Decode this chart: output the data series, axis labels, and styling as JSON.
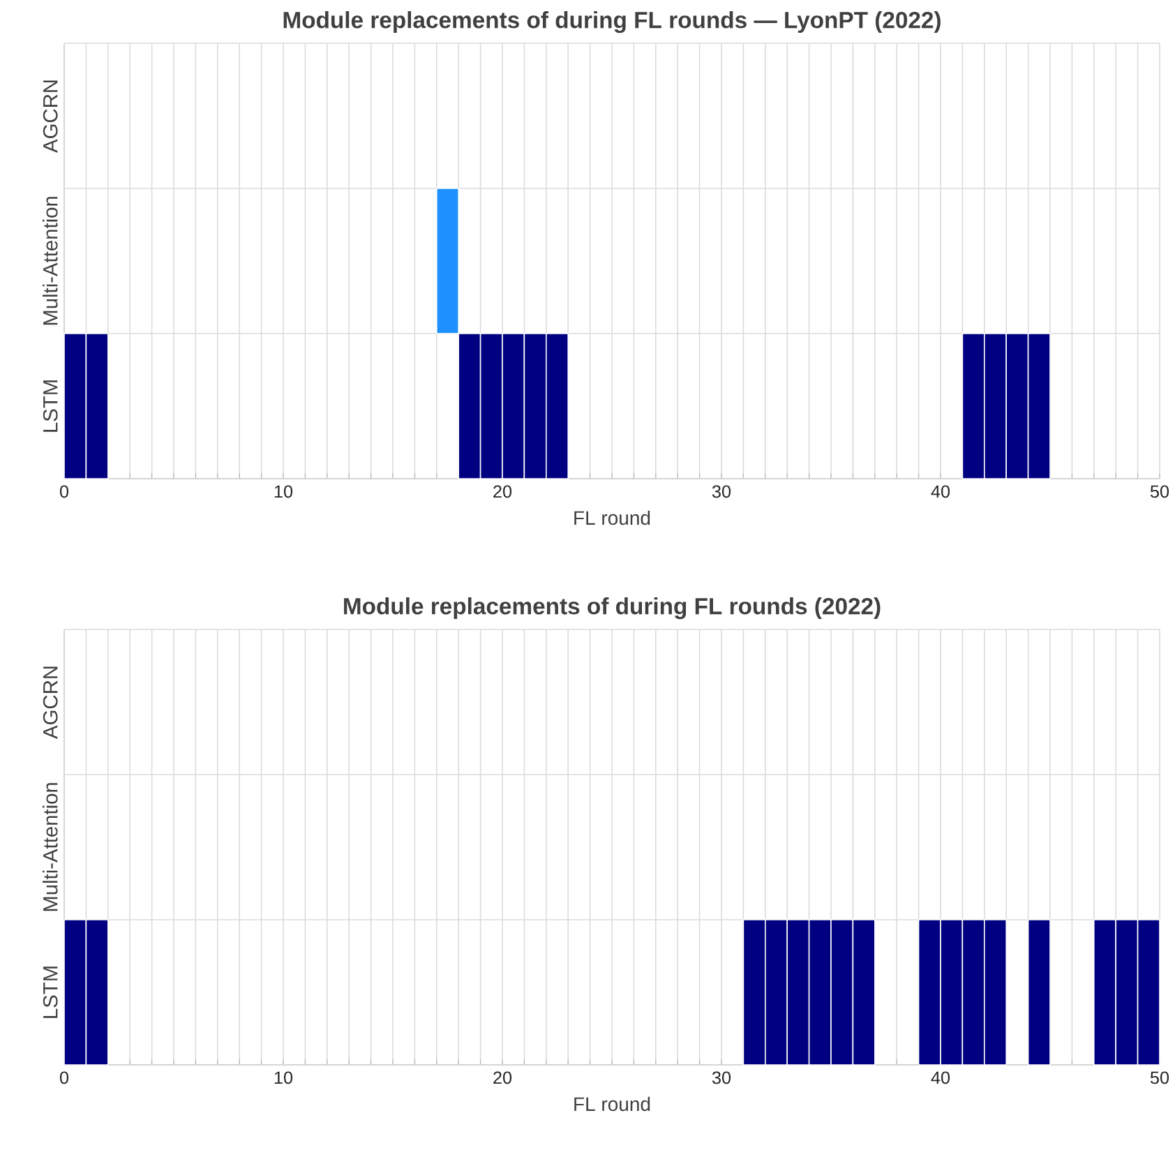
{
  "chart_data": [
    {
      "type": "bar",
      "orientation": "horizontal",
      "title": "Module replacements of during FL rounds — LyonPT (2022)",
      "xlabel": "FL round",
      "xlim": [
        0,
        50
      ],
      "xticks": [
        0,
        {
          "value": 1,
          "label": null
        },
        {
          "value": 2,
          "label": null
        },
        {
          "value": 3,
          "label": null
        },
        {
          "value": 4,
          "label": null
        },
        {
          "value": 5,
          "label": null
        },
        {
          "value": 6,
          "label": null
        },
        {
          "value": 7,
          "label": null
        },
        {
          "value": 8,
          "label": null
        },
        {
          "value": 9,
          "label": null
        },
        10,
        {
          "value": 11,
          "label": null
        },
        {
          "value": 12,
          "label": null
        },
        {
          "value": 13,
          "label": null
        },
        {
          "value": 14,
          "label": null
        },
        {
          "value": 15,
          "label": null
        },
        {
          "value": 16,
          "label": null
        },
        {
          "value": 17,
          "label": null
        },
        {
          "value": 18,
          "label": null
        },
        {
          "value": 19,
          "label": null
        },
        20,
        {
          "value": 21,
          "label": null
        },
        {
          "value": 22,
          "label": null
        },
        {
          "value": 23,
          "label": null
        },
        {
          "value": 24,
          "label": null
        },
        {
          "value": 25,
          "label": null
        },
        {
          "value": 26,
          "label": null
        },
        {
          "value": 27,
          "label": null
        },
        {
          "value": 28,
          "label": null
        },
        {
          "value": 29,
          "label": null
        },
        30,
        {
          "value": 31,
          "label": null
        },
        {
          "value": 32,
          "label": null
        },
        {
          "value": 33,
          "label": null
        },
        {
          "value": 34,
          "label": null
        },
        {
          "value": 35,
          "label": null
        },
        {
          "value": 36,
          "label": null
        },
        {
          "value": 37,
          "label": null
        },
        {
          "value": 38,
          "label": null
        },
        {
          "value": 39,
          "label": null
        },
        40,
        {
          "value": 41,
          "label": null
        },
        {
          "value": 42,
          "label": null
        },
        {
          "value": 43,
          "label": null
        },
        {
          "value": 44,
          "label": null
        },
        {
          "value": 45,
          "label": null
        },
        {
          "value": 46,
          "label": null
        },
        {
          "value": 47,
          "label": null
        },
        {
          "value": 48,
          "label": null
        },
        {
          "value": 49,
          "label": null
        },
        50
      ],
      "categories": [
        "AGCRN",
        "Multi-Attention",
        "LSTM"
      ],
      "grid": true,
      "series": [
        {
          "color": "#000080",
          "values": [
            null,
            null,
            1
          ],
          "base": [
            null,
            null,
            0
          ]
        },
        {
          "color": "#000080",
          "values": [
            null,
            null,
            1
          ],
          "base": [
            null,
            null,
            1
          ]
        },
        {
          "color": "#1e90ff",
          "values": [
            null,
            1,
            null
          ],
          "base": [
            null,
            17,
            null
          ]
        },
        {
          "color": "#000080",
          "values": [
            null,
            null,
            1
          ],
          "base": [
            null,
            null,
            18
          ]
        },
        {
          "color": "#000080",
          "values": [
            null,
            null,
            1
          ],
          "base": [
            null,
            null,
            19
          ]
        },
        {
          "color": "#000080",
          "values": [
            null,
            null,
            1
          ],
          "base": [
            null,
            null,
            20
          ]
        },
        {
          "color": "#000080",
          "values": [
            null,
            null,
            1
          ],
          "base": [
            null,
            null,
            21
          ]
        },
        {
          "color": "#000080",
          "values": [
            null,
            null,
            1
          ],
          "base": [
            null,
            null,
            22
          ]
        },
        {
          "color": "#000080",
          "values": [
            null,
            null,
            1
          ],
          "base": [
            null,
            null,
            41
          ]
        },
        {
          "color": "#000080",
          "values": [
            null,
            null,
            1
          ],
          "base": [
            null,
            null,
            42
          ]
        },
        {
          "color": "#000080",
          "values": [
            null,
            null,
            1
          ],
          "base": [
            null,
            null,
            43
          ]
        },
        {
          "color": "#000080",
          "values": [
            null,
            null,
            1
          ],
          "base": [
            null,
            null,
            44
          ]
        }
      ]
    },
    {
      "type": "bar",
      "orientation": "horizontal",
      "title": "Module replacements of during FL rounds (2022)",
      "xlabel": "FL round",
      "xlim": [
        0,
        50
      ],
      "xticks": [
        0,
        {
          "value": 1,
          "label": null
        },
        {
          "value": 2,
          "label": null
        },
        {
          "value": 3,
          "label": null
        },
        {
          "value": 4,
          "label": null
        },
        {
          "value": 5,
          "label": null
        },
        {
          "value": 6,
          "label": null
        },
        {
          "value": 7,
          "label": null
        },
        {
          "value": 8,
          "label": null
        },
        {
          "value": 9,
          "label": null
        },
        10,
        {
          "value": 11,
          "label": null
        },
        {
          "value": 12,
          "label": null
        },
        {
          "value": 13,
          "label": null
        },
        {
          "value": 14,
          "label": null
        },
        {
          "value": 15,
          "label": null
        },
        {
          "value": 16,
          "label": null
        },
        {
          "value": 17,
          "label": null
        },
        {
          "value": 18,
          "label": null
        },
        {
          "value": 19,
          "label": null
        },
        20,
        {
          "value": 21,
          "label": null
        },
        {
          "value": 22,
          "label": null
        },
        {
          "value": 23,
          "label": null
        },
        {
          "value": 24,
          "label": null
        },
        {
          "value": 25,
          "label": null
        },
        {
          "value": 26,
          "label": null
        },
        {
          "value": 27,
          "label": null
        },
        {
          "value": 28,
          "label": null
        },
        {
          "value": 29,
          "label": null
        },
        30,
        {
          "value": 31,
          "label": null
        },
        {
          "value": 32,
          "label": null
        },
        {
          "value": 33,
          "label": null
        },
        {
          "value": 34,
          "label": null
        },
        {
          "value": 35,
          "label": null
        },
        {
          "value": 36,
          "label": null
        },
        {
          "value": 37,
          "label": null
        },
        {
          "value": 38,
          "label": null
        },
        {
          "value": 39,
          "label": null
        },
        40,
        {
          "value": 41,
          "label": null
        },
        {
          "value": 42,
          "label": null
        },
        {
          "value": 43,
          "label": null
        },
        {
          "value": 44,
          "label": null
        },
        {
          "value": 45,
          "label": null
        },
        {
          "value": 46,
          "label": null
        },
        {
          "value": 47,
          "label": null
        },
        {
          "value": 48,
          "label": null
        },
        {
          "value": 49,
          "label": null
        },
        50
      ],
      "categories": [
        "AGCRN",
        "Multi-Attention",
        "LSTM"
      ],
      "grid": true,
      "series": [
        {
          "color": "#000080",
          "values": [
            null,
            null,
            1
          ],
          "base": [
            null,
            null,
            0
          ]
        },
        {
          "color": "#000080",
          "values": [
            null,
            null,
            1
          ],
          "base": [
            null,
            null,
            1
          ]
        },
        {
          "color": "#000080",
          "values": [
            null,
            null,
            1
          ],
          "base": [
            null,
            null,
            31
          ]
        },
        {
          "color": "#000080",
          "values": [
            null,
            null,
            1
          ],
          "base": [
            null,
            null,
            32
          ]
        },
        {
          "color": "#000080",
          "values": [
            null,
            null,
            1
          ],
          "base": [
            null,
            null,
            33
          ]
        },
        {
          "color": "#000080",
          "values": [
            null,
            null,
            1
          ],
          "base": [
            null,
            null,
            34
          ]
        },
        {
          "color": "#000080",
          "values": [
            null,
            null,
            1
          ],
          "base": [
            null,
            null,
            35
          ]
        },
        {
          "color": "#000080",
          "values": [
            null,
            null,
            1
          ],
          "base": [
            null,
            null,
            36
          ]
        },
        {
          "color": "#000080",
          "values": [
            null,
            null,
            1
          ],
          "base": [
            null,
            null,
            39
          ]
        },
        {
          "color": "#000080",
          "values": [
            null,
            null,
            1
          ],
          "base": [
            null,
            null,
            40
          ]
        },
        {
          "color": "#000080",
          "values": [
            null,
            null,
            1
          ],
          "base": [
            null,
            null,
            41
          ]
        },
        {
          "color": "#000080",
          "values": [
            null,
            null,
            1
          ],
          "base": [
            null,
            null,
            42
          ]
        },
        {
          "color": "#000080",
          "values": [
            null,
            null,
            1
          ],
          "base": [
            null,
            null,
            44
          ]
        },
        {
          "color": "#000080",
          "values": [
            null,
            null,
            1
          ],
          "base": [
            null,
            null,
            47
          ]
        },
        {
          "color": "#000080",
          "values": [
            null,
            null,
            1
          ],
          "base": [
            null,
            null,
            48
          ]
        },
        {
          "color": "#000080",
          "values": [
            null,
            null,
            1
          ],
          "base": [
            null,
            null,
            49
          ]
        }
      ]
    }
  ]
}
